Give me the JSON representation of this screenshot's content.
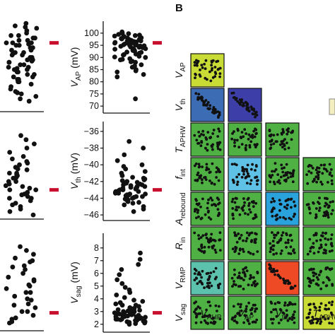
{
  "panel_label": "B",
  "colors": {
    "dots": "#111111",
    "median_marker": "#c8102e",
    "matrix_palette": [
      "#c9dc36",
      "#3c6cb4",
      "#3d3ea8",
      "#4fb043",
      "#5fc1e6",
      "#2aa3dc",
      "#5cc2ad",
      "#ee4a25"
    ]
  },
  "strip_panels": [
    {
      "ylabel_main": "V",
      "ylabel_sub": "AP",
      "ylabel_unit": " (mV)",
      "ticks": [
        "100",
        "95",
        "90",
        "85",
        "80",
        "75",
        "70"
      ]
    },
    {
      "ylabel_main": "V",
      "ylabel_sub": "th",
      "ylabel_unit": " (mV)",
      "ticks": [
        "-36",
        "-38",
        "-40",
        "-42",
        "-44",
        "-46"
      ]
    },
    {
      "ylabel_main": "V",
      "ylabel_sub": "sag",
      "ylabel_unit": " (mV)",
      "ticks": [
        "8",
        "7",
        "6",
        "5",
        "4",
        "3",
        "2"
      ]
    }
  ],
  "matrix": {
    "row_labels": [
      {
        "main": "V",
        "sub": "AP"
      },
      {
        "main": "V",
        "sub": "th"
      },
      {
        "main": "T",
        "sub": "APHW"
      },
      {
        "main": "f",
        "sub": "int"
      },
      {
        "main": "A",
        "sub": "rebound"
      },
      {
        "main": "R",
        "sub": "in"
      },
      {
        "main": "V",
        "sub": "RMP"
      },
      {
        "main": "V",
        "sub": "sag"
      }
    ],
    "col_labels": [
      {
        "main": "V",
        "sub": "AHP"
      },
      {
        "main": "V",
        "sub": "AP"
      },
      {
        "main": "V",
        "sub": "th"
      },
      {
        "main": "T",
        "sub": "APHW"
      }
    ]
  },
  "chart_data": [
    {
      "type": "scatter",
      "title": "",
      "ylabel": "V_AP (mV)",
      "ylim": [
        68,
        102
      ],
      "median": 96,
      "values": [
        100,
        99.5,
        99,
        98.8,
        98.5,
        98.3,
        98,
        97.8,
        97.5,
        97.3,
        97,
        96.8,
        96.6,
        96.4,
        96.2,
        96,
        95.8,
        95.6,
        95.4,
        95.2,
        95,
        94.8,
        94.6,
        94.3,
        94,
        93.7,
        93.4,
        93,
        92.6,
        92.2,
        91.8,
        91.4,
        91,
        90.5,
        90,
        89.5,
        89,
        88.5,
        88,
        87,
        86,
        85,
        84,
        83,
        82,
        100.5,
        99.8,
        99.2,
        98.6,
        98.1,
        97.6,
        97.1,
        96.7,
        96.3,
        95.9,
        95.5,
        95.1,
        94.7,
        94.2,
        93.6,
        92.9,
        92.1,
        91.2,
        90.2,
        89.2,
        88.2,
        86.5,
        84.5,
        73
      ],
      "secondary_values": [
        104,
        103,
        102.5,
        102,
        101,
        100,
        99,
        98,
        97,
        96,
        95.5,
        95,
        94,
        93,
        92,
        91.5,
        91,
        90,
        89,
        88.5,
        88,
        87,
        86,
        85.5,
        85,
        84,
        83,
        82,
        81,
        80,
        79,
        78,
        77,
        76,
        75.5,
        75,
        74,
        73,
        72,
        96,
        95,
        94,
        93,
        92,
        91,
        90,
        89,
        88,
        87,
        86,
        85,
        84,
        83,
        82,
        81,
        80,
        99,
        98,
        97,
        96
      ]
    },
    {
      "type": "scatter",
      "title": "",
      "ylabel": "V_th (mV)",
      "ylim": [
        -46.5,
        -35.5
      ],
      "median": -43,
      "values": [
        -37.2,
        -38,
        -38.8,
        -39.5,
        -40,
        -40.5,
        -40.8,
        -41,
        -41.3,
        -41.5,
        -41.7,
        -41.9,
        -42.1,
        -42.2,
        -42.3,
        -42.4,
        -42.5,
        -42.6,
        -42.7,
        -42.8,
        -42.9,
        -43,
        -43.1,
        -43.2,
        -43.3,
        -43.4,
        -43.5,
        -43.6,
        -43.7,
        -43.8,
        -43.9,
        -44,
        -44.1,
        -44.2,
        -44.4,
        -44.6,
        -44.8,
        -45,
        -45.3,
        -45.6,
        -42,
        -42.4,
        -42.8,
        -43.2,
        -43.6,
        -44,
        -41.6,
        -42.6,
        -43.4,
        -44.3,
        -42.2,
        -43,
        -43.8,
        -40.2,
        -41.8,
        -42.7,
        -43.5,
        -44.5
      ],
      "secondary_values": [
        -36.5,
        -37,
        -37.5,
        -38,
        -38.5,
        -39,
        -39.3,
        -39.6,
        -40,
        -40.3,
        -40.6,
        -41,
        -41.3,
        -41.6,
        -42,
        -42.3,
        -42.6,
        -43,
        -43.3,
        -43.6,
        -44,
        -44.3,
        -44.6,
        -45,
        -45.3,
        -45.6,
        -46,
        -41.5,
        -42.5,
        -43.5,
        -40.5,
        -42,
        -43,
        -44,
        -41,
        -42.8,
        -43.8,
        -39.8,
        -41.2,
        -44.8
      ]
    },
    {
      "type": "scatter",
      "title": "",
      "ylabel": "V_sag (mV)",
      "ylim": [
        1.6,
        8.6
      ],
      "median": 2.9,
      "values": [
        7.6,
        7.1,
        6.7,
        6.3,
        5.9,
        5.5,
        5.2,
        4.9,
        4.7,
        4.5,
        4.3,
        4.1,
        3.9,
        3.8,
        3.7,
        3.6,
        3.5,
        3.4,
        3.3,
        3.25,
        3.2,
        3.15,
        3.1,
        3.05,
        3.0,
        2.95,
        2.9,
        2.85,
        2.8,
        2.75,
        2.7,
        2.65,
        2.6,
        2.55,
        2.5,
        2.45,
        2.4,
        2.35,
        2.3,
        2.25,
        2.2,
        2.15,
        2.1,
        2.05,
        2.0,
        3.5,
        3.2,
        2.9,
        2.6,
        2.3,
        3.0,
        2.7,
        2.4,
        2.8,
        2.5,
        3.3,
        2.6,
        2.9,
        2.4,
        2.2
      ],
      "secondary_values": [
        8.1,
        7.8,
        7.5,
        7.2,
        6.9,
        6.6,
        6.3,
        6.0,
        5.7,
        5.4,
        5.1,
        4.8,
        4.5,
        4.2,
        3.9,
        3.6,
        3.3,
        3.0,
        2.7,
        2.4,
        2.1,
        6.5,
        5.5,
        4.5,
        3.5,
        2.5,
        7.0,
        5.0,
        4.0,
        3.0,
        2.2
      ]
    }
  ]
}
